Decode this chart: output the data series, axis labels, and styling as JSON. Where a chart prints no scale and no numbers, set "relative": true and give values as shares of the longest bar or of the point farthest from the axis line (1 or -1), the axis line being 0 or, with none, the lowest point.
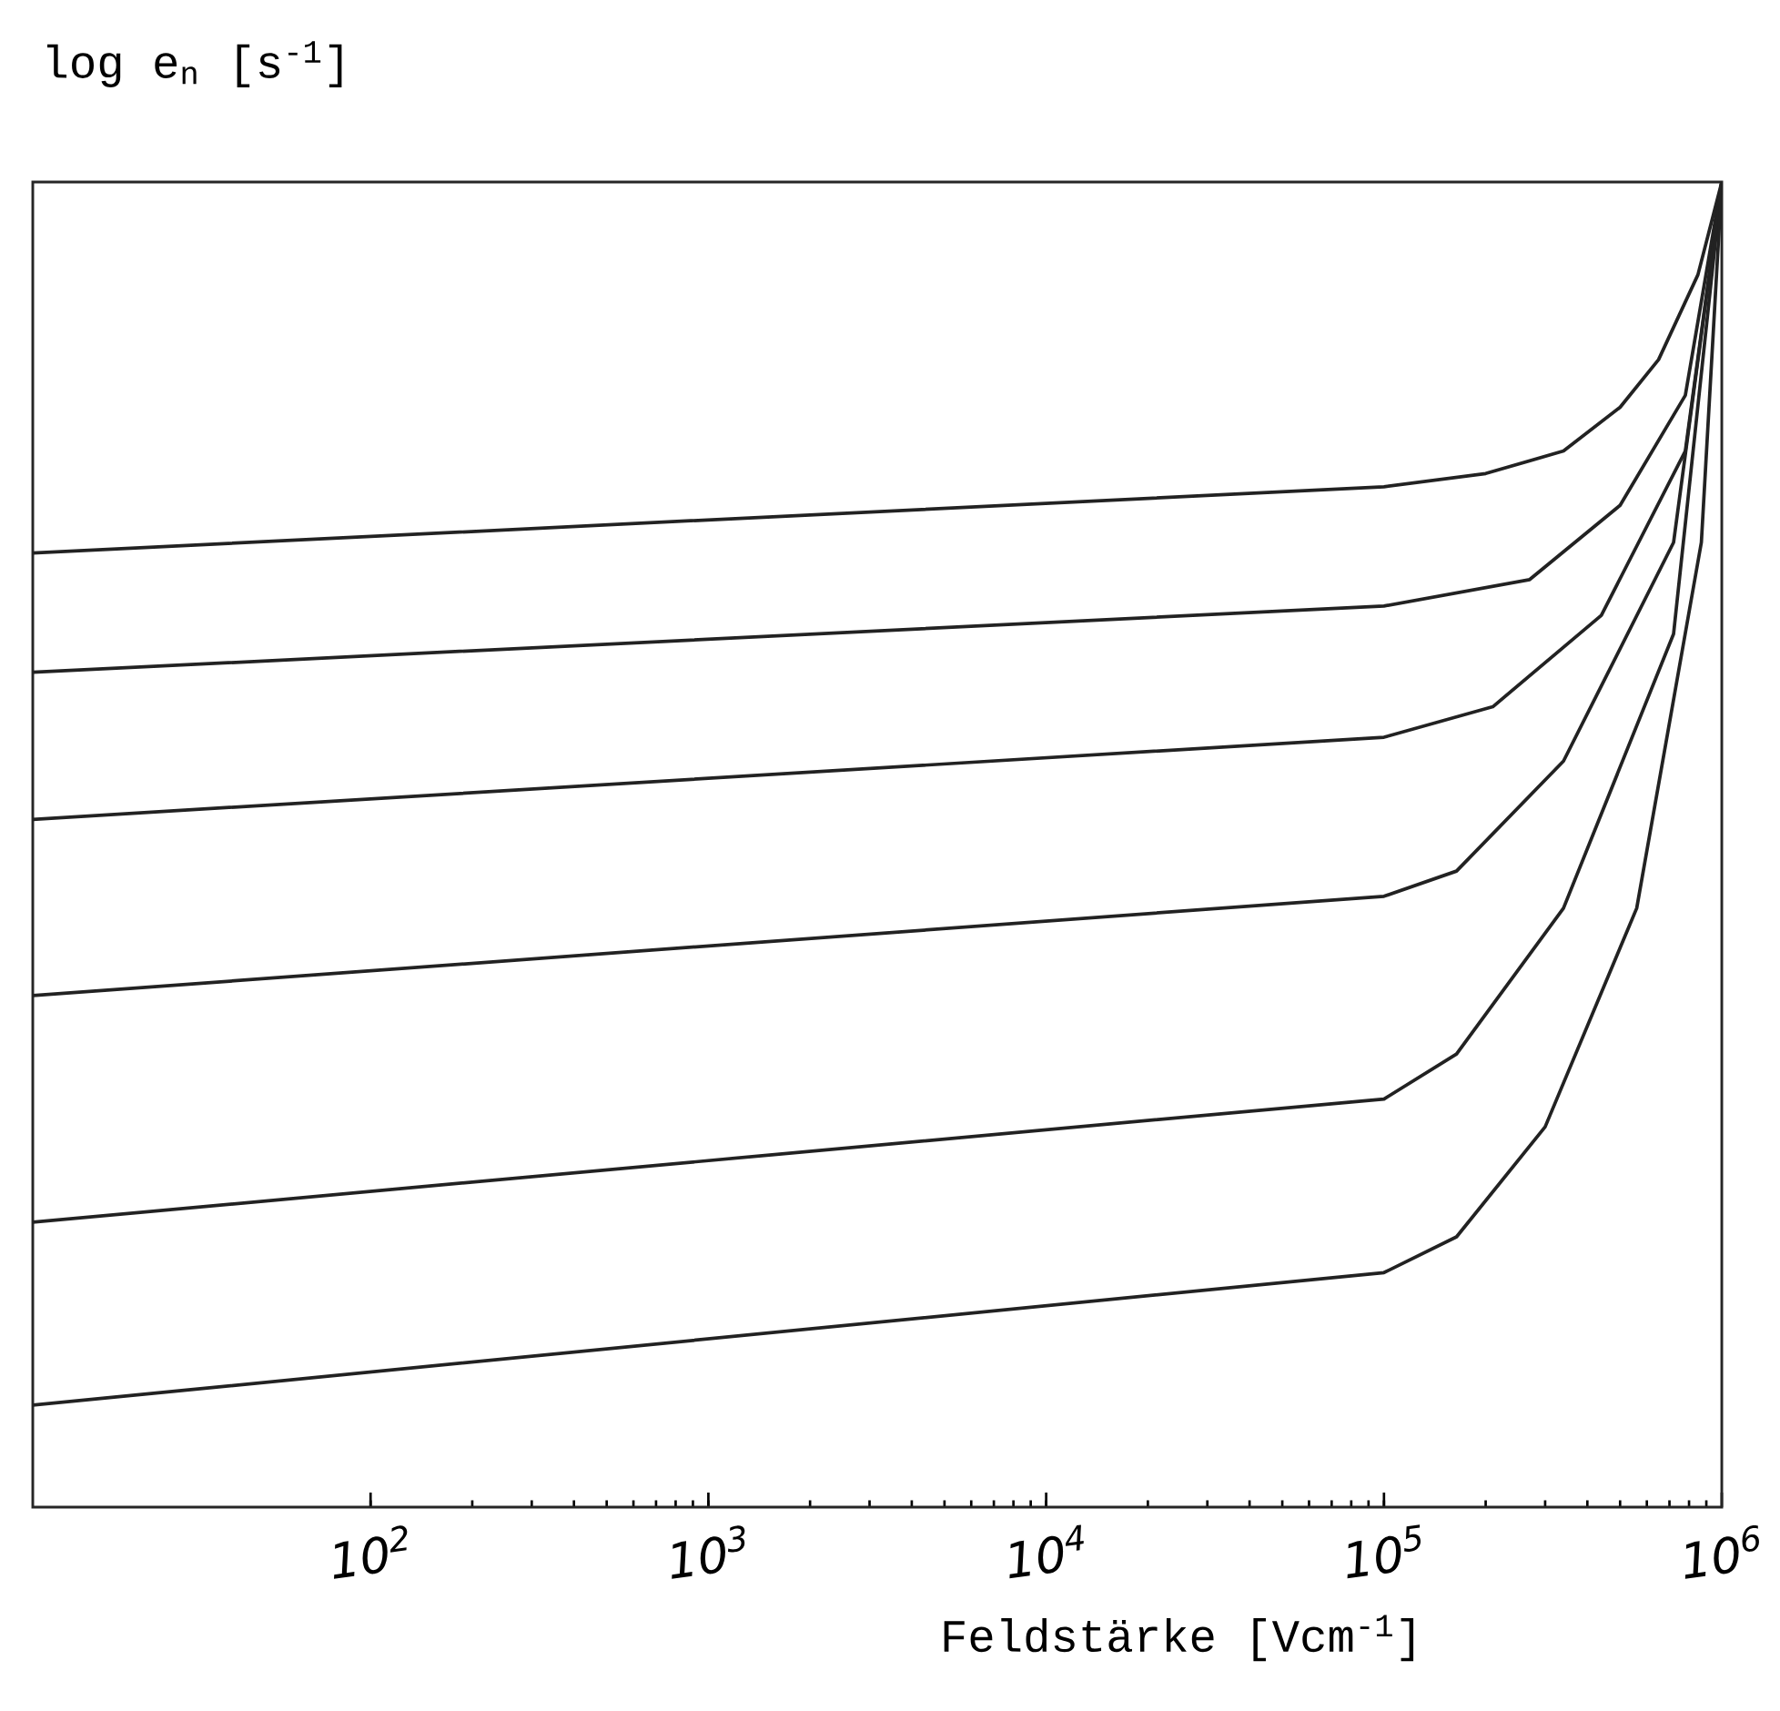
{
  "chart_data": {
    "type": "line",
    "relative": true,
    "log": "x",
    "ylabel": "log e$_{n}$ [s$^{-1}$]",
    "xlabel": "Feldstärke [Vcm$^{-1}$]",
    "xlim": [
      10,
      1000000
    ],
    "xticks": [
      {
        "value": 100,
        "label": "10$^{2}$"
      },
      {
        "value": 1000,
        "label": "10$^{3}$"
      },
      {
        "value": 10000,
        "label": "10$^{4}$"
      },
      {
        "value": 100000,
        "label": "10$^{5}$"
      },
      {
        "value": 1000000,
        "label": "10$^{6}$"
      }
    ],
    "series": [
      {
        "color": "#222222",
        "x": [
          10,
          100000,
          200000,
          340000,
          500000,
          650000,
          850000,
          1000000
        ],
        "values": [
          0.72,
          0.77,
          0.78,
          0.797,
          0.83,
          0.866,
          0.93,
          1
        ]
      },
      {
        "color": "#222222",
        "x": [
          10,
          100000,
          270000,
          500000,
          780000,
          1000000
        ],
        "values": [
          0.63,
          0.68,
          0.7,
          0.756,
          0.839,
          1
        ]
      },
      {
        "color": "#222222",
        "x": [
          10,
          100000,
          210000,
          440000,
          780000,
          1000000
        ],
        "values": [
          0.519,
          0.581,
          0.604,
          0.673,
          0.797,
          1
        ]
      },
      {
        "color": "#222222",
        "x": [
          10,
          100000,
          164000,
          340000,
          720000,
          1000000
        ],
        "values": [
          0.386,
          0.461,
          0.48,
          0.563,
          0.728,
          1
        ]
      },
      {
        "color": "#222222",
        "x": [
          10,
          100000,
          164000,
          340000,
          720000,
          1000000
        ],
        "values": [
          0.215,
          0.308,
          0.342,
          0.452,
          0.659,
          1
        ]
      },
      {
        "color": "#222222",
        "x": [
          10,
          100000,
          164000,
          300000,
          560000,
          870000,
          1000000
        ],
        "values": [
          0.077,
          0.177,
          0.204,
          0.287,
          0.452,
          0.728,
          1
        ]
      }
    ]
  }
}
